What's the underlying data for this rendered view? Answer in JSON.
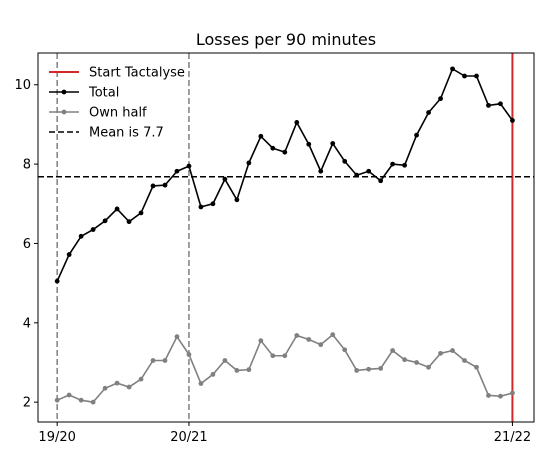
{
  "chart_data": {
    "type": "line",
    "title": "Losses per 90 minutes",
    "xlabel": "",
    "ylabel": "",
    "x_ticks": [
      {
        "value": 0,
        "label": "19/20"
      },
      {
        "value": 11,
        "label": "20/21"
      },
      {
        "value": 38,
        "label": "21/22"
      }
    ],
    "xlim": [
      -1.6,
      39.8
    ],
    "y_ticks": [
      2,
      4,
      6,
      8,
      10
    ],
    "ylim": [
      1.5,
      10.8
    ],
    "grid": false,
    "legend_position": "top-left",
    "series": [
      {
        "name": "Total",
        "color": "#000000",
        "x": [
          0,
          1,
          2,
          3,
          4,
          5,
          6,
          7,
          8,
          9,
          10,
          11,
          12,
          13,
          14,
          15,
          16,
          17,
          18,
          19,
          20,
          21,
          22,
          23,
          24,
          25,
          26,
          27,
          28,
          29,
          30,
          31,
          32,
          33,
          34,
          35
        ],
        "values": [
          5.05,
          5.72,
          6.18,
          6.35,
          6.57,
          6.87,
          6.55,
          6.77,
          7.45,
          7.47,
          7.82,
          7.95,
          6.92,
          7.0,
          7.62,
          7.1,
          8.03,
          8.7,
          8.4,
          8.3,
          9.05,
          8.5,
          7.82,
          8.52,
          8.07,
          7.72,
          7.82,
          7.58,
          8.0,
          7.97,
          8.73,
          9.3,
          9.65,
          10.4,
          10.22,
          10.22
        ]
      },
      {
        "name": "Own half",
        "color": "#808080",
        "x": [
          0,
          1,
          2,
          3,
          4,
          5,
          6,
          7,
          8,
          9,
          10,
          11,
          12,
          13,
          14,
          15,
          16,
          17,
          18,
          19,
          20,
          21,
          22,
          23,
          24,
          25,
          26,
          27,
          28,
          29,
          30,
          31,
          32,
          33,
          34,
          35
        ],
        "values": [
          2.05,
          2.18,
          2.05,
          2.0,
          2.35,
          2.48,
          2.38,
          2.58,
          3.05,
          3.05,
          3.65,
          3.2,
          2.47,
          2.7,
          3.05,
          2.8,
          2.82,
          3.55,
          3.17,
          3.17,
          3.68,
          3.58,
          3.45,
          3.7,
          3.32,
          2.8,
          2.83,
          2.85,
          3.3,
          3.07,
          3.0,
          2.88,
          3.23,
          3.3,
          3.05,
          2.88
        ]
      }
    ],
    "series_tail": [
      {
        "series": "Total",
        "x": [
          36,
          37,
          38
        ],
        "values": [
          9.48,
          9.52,
          9.1
        ]
      },
      {
        "series": "Own half",
        "x": [
          36,
          37,
          38
        ],
        "values": [
          2.17,
          2.15,
          2.23
        ]
      }
    ],
    "reference_lines": [
      {
        "name": "Start Tactalyse",
        "orientation": "vertical",
        "value": 38,
        "color": "#d62728",
        "style": "solid"
      },
      {
        "name": "Mean is 7.7",
        "orientation": "horizontal",
        "value": 7.68,
        "color": "#000000",
        "style": "dashed"
      },
      {
        "name": "",
        "orientation": "vertical",
        "value": 0,
        "color": "#808080",
        "style": "dashed"
      },
      {
        "name": "",
        "orientation": "vertical",
        "value": 11,
        "color": "#808080",
        "style": "dashed"
      }
    ],
    "legend": [
      {
        "label": "Start Tactalyse",
        "color": "#d62728",
        "style": "solid",
        "marker": false
      },
      {
        "label": "Total",
        "color": "#000000",
        "style": "solid",
        "marker": true
      },
      {
        "label": "Own half",
        "color": "#808080",
        "style": "solid",
        "marker": true
      },
      {
        "label": "Mean is 7.7",
        "color": "#000000",
        "style": "dashed",
        "marker": false
      }
    ]
  }
}
